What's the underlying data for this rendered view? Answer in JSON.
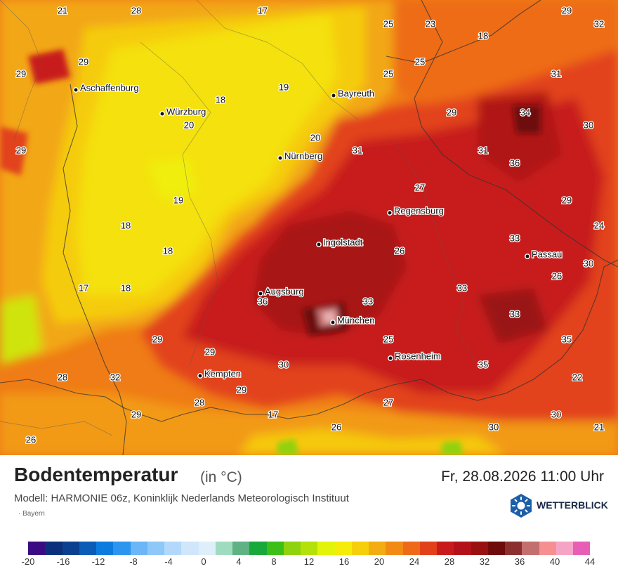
{
  "header": {
    "title": "Bodentemperatur",
    "unit": "(in °C)",
    "datetime": "Fr, 28.08.2026 11:00 Uhr",
    "model": "Modell: HARMONIE 06z, Koninklijk Nederlands Meteorologisch Instituut",
    "region": "Bayern"
  },
  "logo": {
    "text": "WETTERBLICK",
    "icon": "sun-hexagon-icon",
    "color": "#1b5fa8"
  },
  "cities": [
    {
      "name": "Aschaffenburg"
    },
    {
      "name": "Würzburg"
    },
    {
      "name": "Bayreuth"
    },
    {
      "name": "Nürnberg"
    },
    {
      "name": "Regensburg"
    },
    {
      "name": "Ingolstadt"
    },
    {
      "name": "Passau"
    },
    {
      "name": "Augsburg"
    },
    {
      "name": "München"
    },
    {
      "name": "Rosenheim"
    },
    {
      "name": "Kempten"
    }
  ],
  "values": [
    "21",
    "28",
    "17",
    "25",
    "23",
    "29",
    "32",
    "18",
    "29",
    "29",
    "25",
    "25",
    "31",
    "19",
    "18",
    "29",
    "34",
    "20",
    "30",
    "20",
    "31",
    "29",
    "31",
    "36",
    "27",
    "19",
    "29",
    "18",
    "24",
    "26",
    "33",
    "18",
    "30",
    "17",
    "18",
    "36",
    "33",
    "33",
    "26",
    "33",
    "25",
    "35",
    "29",
    "29",
    "30",
    "35",
    "22",
    "28",
    "32",
    "29",
    "28",
    "27",
    "17",
    "29",
    "30",
    "26",
    "26",
    "30",
    "21"
  ],
  "legend": {
    "colors": [
      "#3a0b82",
      "#0b2f7a",
      "#0b3f8f",
      "#0a5cb6",
      "#0b7be0",
      "#2b95ef",
      "#6ab6f6",
      "#8ec8f8",
      "#b2d9fb",
      "#cfe6fb",
      "#dfeefb",
      "#9fdcbf",
      "#60b283",
      "#19a83a",
      "#3cbf17",
      "#8fd20e",
      "#b4e10a",
      "#e4f30a",
      "#f5ec0a",
      "#f5cf0a",
      "#f3ad10",
      "#f28a16",
      "#ee6a19",
      "#e2401a",
      "#c81a1a",
      "#b3111a",
      "#991010",
      "#6e0b0b",
      "#8b2f2f",
      "#c46f6f",
      "#f69090",
      "#f6a4c6",
      "#e85eb6"
    ],
    "labels": [
      "-20",
      "-16",
      "-12",
      "-8",
      "-4",
      "0",
      "4",
      "8",
      "12",
      "16",
      "20",
      "24",
      "28",
      "32",
      "36",
      "40",
      "44"
    ]
  }
}
